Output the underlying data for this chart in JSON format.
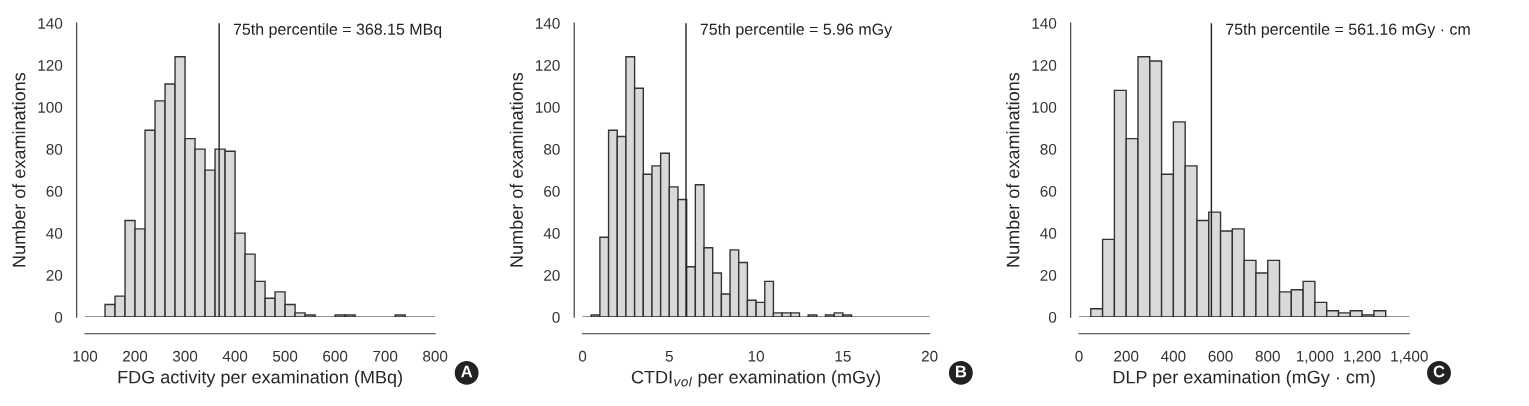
{
  "chart_data": [
    {
      "type": "histogram",
      "xlabel": "FDG activity per examination (MBq)",
      "ylabel": "Number of examinations",
      "bins": [
        140,
        160,
        180,
        200,
        220,
        240,
        260,
        280,
        300,
        320,
        340,
        360,
        380,
        400,
        420,
        440,
        460,
        480,
        500,
        520,
        540,
        560,
        580,
        600,
        620,
        640,
        660,
        680,
        700,
        720,
        740
      ],
      "values": [
        6,
        10,
        46,
        42,
        89,
        103,
        111,
        124,
        85,
        80,
        70,
        80,
        79,
        40,
        30,
        17,
        9,
        12,
        6,
        2,
        1,
        0,
        0,
        1,
        1,
        0,
        0,
        0,
        0,
        1
      ],
      "color": "#d9d9d9",
      "xlim": [
        100,
        800
      ],
      "xticks": [
        100,
        200,
        300,
        400,
        500,
        600,
        700,
        800
      ],
      "ylim": [
        0,
        140
      ],
      "yticks": [
        0,
        20,
        40,
        60,
        80,
        100,
        120,
        140
      ],
      "ref_lines": [
        {
          "axis": "x",
          "value": 368.15,
          "label": "75th percentile = 368.15 MBq"
        },
        {
          "axis": "y",
          "value": 0
        }
      ],
      "annotations": [
        "A"
      ],
      "grid": false,
      "legend": false
    },
    {
      "type": "histogram",
      "xlabel": "CTDI$_{vol}$ per examination (mGy)",
      "ylabel": "Number of examinations",
      "bins": [
        0.5,
        1,
        1.5,
        2,
        2.5,
        3,
        3.5,
        4,
        4.5,
        5,
        5.5,
        6,
        6.5,
        7,
        7.5,
        8,
        8.5,
        9,
        9.5,
        10,
        10.5,
        11,
        11.5,
        12,
        12.5,
        13,
        13.5,
        14,
        14.5,
        15,
        15.5
      ],
      "values": [
        1,
        38,
        89,
        86,
        124,
        109,
        68,
        72,
        78,
        62,
        56,
        24,
        63,
        33,
        21,
        11,
        32,
        26,
        8,
        7,
        17,
        2,
        2,
        2,
        0,
        1,
        0,
        1,
        2,
        1
      ],
      "color": "#d9d9d9",
      "xlim": [
        0,
        20
      ],
      "xticks": [
        0,
        5,
        10,
        15,
        20
      ],
      "ylim": [
        0,
        140
      ],
      "yticks": [
        0,
        20,
        40,
        60,
        80,
        100,
        120,
        140
      ],
      "ref_lines": [
        {
          "axis": "x",
          "value": 5.96,
          "label": "75th percentile = 5.96 mGy"
        },
        {
          "axis": "y",
          "value": 0
        }
      ],
      "annotations": [
        "B"
      ],
      "grid": false,
      "legend": false
    },
    {
      "type": "histogram",
      "xlabel": "DLP per examination (mGy · cm)",
      "ylabel": "Number of examinations",
      "bins": [
        50,
        100,
        150,
        200,
        250,
        300,
        350,
        400,
        450,
        500,
        550,
        600,
        650,
        700,
        750,
        800,
        850,
        900,
        950,
        1000,
        1050,
        1100,
        1150,
        1200,
        1250,
        1300
      ],
      "values": [
        4,
        37,
        108,
        85,
        124,
        122,
        68,
        93,
        72,
        46,
        50,
        41,
        42,
        27,
        21,
        27,
        12,
        13,
        17,
        7,
        3,
        2,
        3,
        1,
        3
      ],
      "color": "#d9d9d9",
      "xlim": [
        0,
        1400
      ],
      "xticks": [
        0,
        200,
        400,
        600,
        800,
        {
          "value": 1000,
          "label": "1,000"
        },
        {
          "value": 1200,
          "label": "1,200"
        },
        {
          "value": 1400,
          "label": "1,400"
        }
      ],
      "ylim": [
        0,
        140
      ],
      "yticks": [
        0,
        20,
        40,
        60,
        80,
        100,
        120,
        140
      ],
      "ref_lines": [
        {
          "axis": "x",
          "value": 561.16,
          "label": "75th percentile = 561.16 mGy · cm"
        },
        {
          "axis": "y",
          "value": 0
        }
      ],
      "annotations": [
        "C"
      ],
      "grid": false,
      "legend": false
    }
  ]
}
